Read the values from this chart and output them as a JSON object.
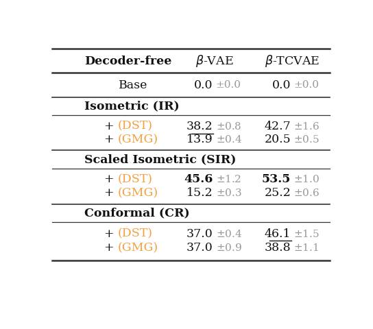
{
  "col_headers": [
    "Decoder-free",
    "β-VAE",
    "β-TCVAE"
  ],
  "sections": [
    {
      "section_name": null,
      "rows": [
        {
          "label": "Base",
          "label_color": "black",
          "values": [
            "0.0",
            "0.0"
          ],
          "stds": [
            "±0.0",
            "±0.0"
          ],
          "bold": [
            false,
            false
          ],
          "underline": [
            false,
            false
          ]
        }
      ]
    },
    {
      "section_name": "Isometric (IR)",
      "rows": [
        {
          "label": "+ (DST)",
          "label_color": "#F4A040",
          "values": [
            "38.2",
            "42.7"
          ],
          "stds": [
            "±0.8",
            "±1.6"
          ],
          "bold": [
            false,
            false
          ],
          "underline": [
            true,
            false
          ]
        },
        {
          "label": "+ (GMG)",
          "label_color": "#F4A040",
          "values": [
            "13.9",
            "20.5"
          ],
          "stds": [
            "±0.4",
            "±0.5"
          ],
          "bold": [
            false,
            false
          ],
          "underline": [
            false,
            false
          ]
        }
      ]
    },
    {
      "section_name": "Scaled Isometric (SIR)",
      "rows": [
        {
          "label": "+ (DST)",
          "label_color": "#F4A040",
          "values": [
            "45.6",
            "53.5"
          ],
          "stds": [
            "±1.2",
            "±1.0"
          ],
          "bold": [
            true,
            true
          ],
          "underline": [
            false,
            false
          ]
        },
        {
          "label": "+ (GMG)",
          "label_color": "#F4A040",
          "values": [
            "15.2",
            "25.2"
          ],
          "stds": [
            "±0.3",
            "±0.6"
          ],
          "bold": [
            false,
            false
          ],
          "underline": [
            false,
            false
          ]
        }
      ]
    },
    {
      "section_name": "Conformal (CR)",
      "rows": [
        {
          "label": "+ (DST)",
          "label_color": "#F4A040",
          "values": [
            "37.0",
            "46.1"
          ],
          "stds": [
            "±0.4",
            "±1.5"
          ],
          "bold": [
            false,
            false
          ],
          "underline": [
            false,
            true
          ]
        },
        {
          "label": "+ (GMG)",
          "label_color": "#F4A040",
          "values": [
            "37.0",
            "38.8"
          ],
          "stds": [
            "±0.9",
            "±1.1"
          ],
          "bold": [
            false,
            false
          ],
          "underline": [
            false,
            false
          ]
        }
      ]
    }
  ],
  "orange_color": "#F4A040",
  "gray_color": "#999999",
  "black_color": "#111111",
  "bg_color": "#ffffff",
  "line_color": "#333333"
}
